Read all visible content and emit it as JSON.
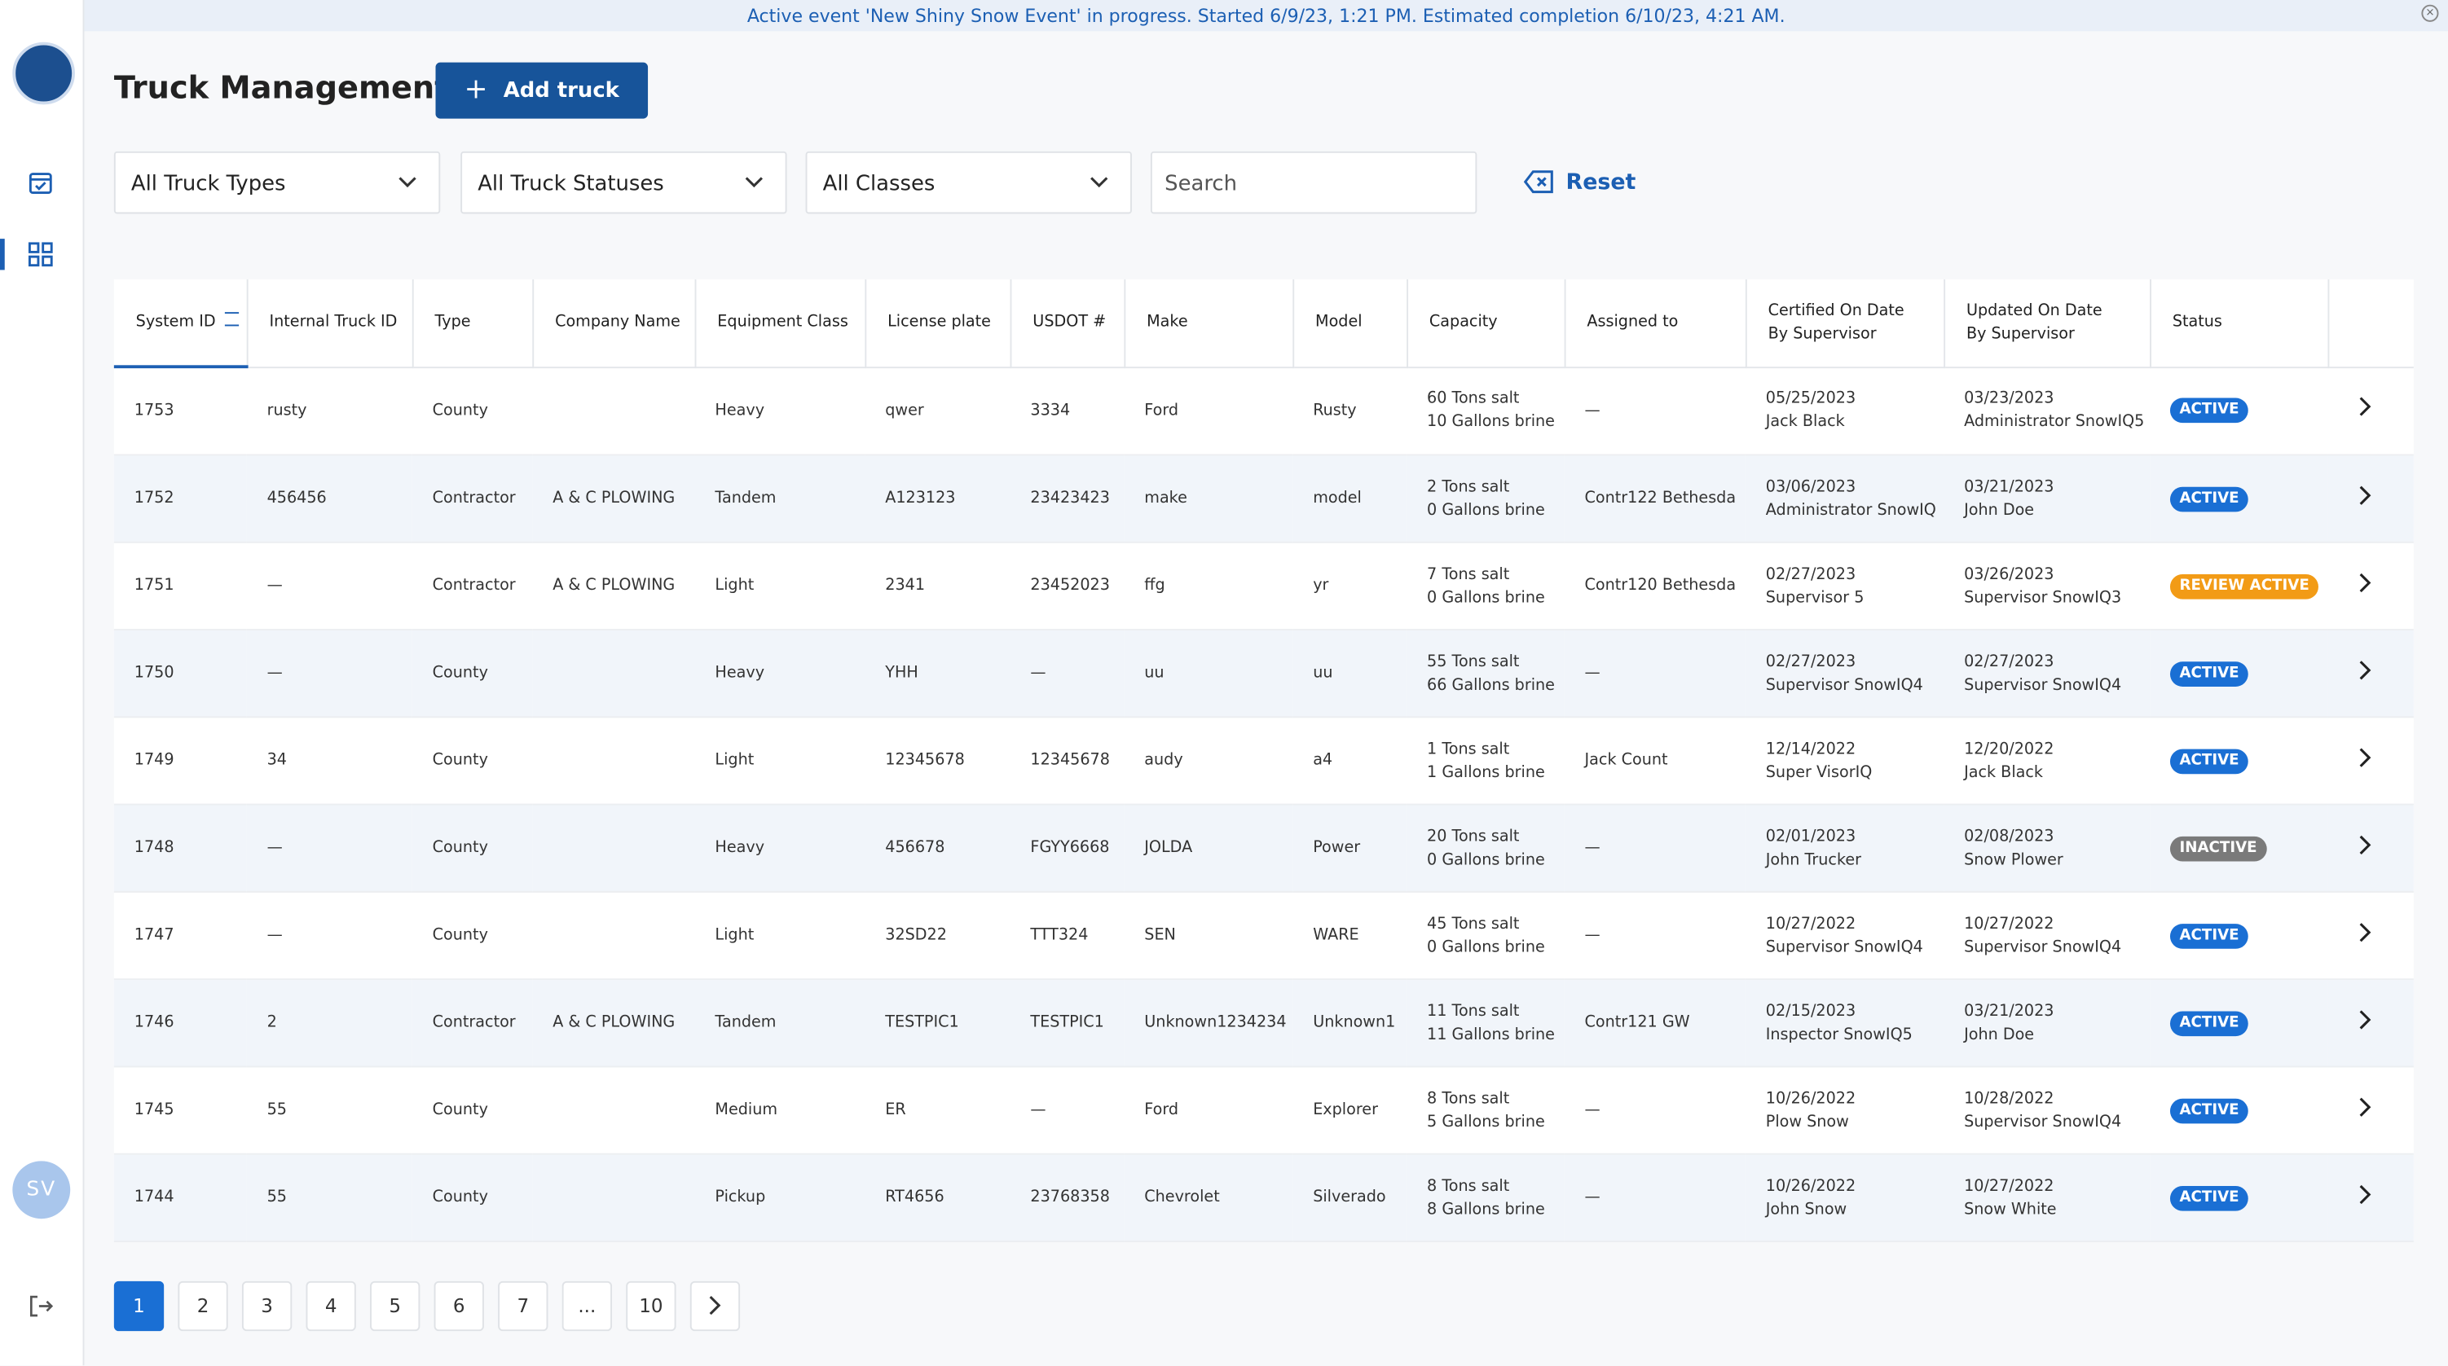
{
  "banner": "Active event 'New Shiny Snow Event' in progress. Started 6/9/23, 1:21 PM. Estimated completion 6/10/23, 4:21 AM.",
  "sidebar": {
    "avatar": "SV"
  },
  "header": {
    "title": "Truck Management",
    "add_button": "Add truck"
  },
  "filters": {
    "truck_types": "All Truck Types",
    "truck_statuses": "All Truck Statuses",
    "classes": "All Classes",
    "search_placeholder": "Search",
    "reset": "Reset"
  },
  "table": {
    "columns": [
      "System ID",
      "Internal Truck ID",
      "Type",
      "Company Name",
      "Equipment Class",
      "License plate",
      "USDOT #",
      "Make",
      "Model",
      "Capacity",
      "Assigned to",
      "Certified On Date By Supervisor",
      "Updated On Date By Supervisor",
      "Status"
    ],
    "rows": [
      {
        "system_id": "1753",
        "internal_id": "rusty",
        "type": "County",
        "equipment_class": "Heavy",
        "license_plate": "qwer",
        "usdot": "3334",
        "make": "Ford",
        "model": "Rusty",
        "salt": "60 Tons salt",
        "brine": "10 Gallons brine",
        "assigned_to": "—",
        "certified_date": "05/25/2023",
        "certified_by": "Jack Black",
        "updated_date": "03/23/2023",
        "updated_by": "Administrator SnowIQ5",
        "status": "ACTIVE"
      },
      {
        "system_id": "1752",
        "internal_id": "456456",
        "type": "Contractor",
        "company": "A & C PLOWING",
        "equipment_class": "Tandem",
        "license_plate": "A123123",
        "usdot": "23423423",
        "make": "make",
        "model": "model",
        "salt": "2 Tons salt",
        "brine": "0 Gallons brine",
        "assigned_to": "Contr122 Bethesda",
        "certified_date": "03/06/2023",
        "certified_by": "Administrator SnowIQ",
        "updated_date": "03/21/2023",
        "updated_by": "John Doe",
        "status": "ACTIVE"
      },
      {
        "system_id": "1751",
        "internal_id": "—",
        "type": "Contractor",
        "company": "A & C PLOWING",
        "equipment_class": "Light",
        "license_plate": "2341",
        "usdot": "23452023",
        "make": "ffg",
        "model": "yr",
        "salt": "7 Tons salt",
        "brine": "0 Gallons brine",
        "assigned_to": "Contr120 Bethesda",
        "certified_date": "02/27/2023",
        "certified_by": "Supervisor 5",
        "updated_date": "03/26/2023",
        "updated_by": "Supervisor SnowIQ3",
        "status": "REVIEW ACTIVE"
      },
      {
        "system_id": "1750",
        "internal_id": "—",
        "type": "County",
        "equipment_class": "Heavy",
        "license_plate": "YHH",
        "usdot": "—",
        "make": "uu",
        "model": "uu",
        "salt": "55 Tons salt",
        "brine": "66 Gallons brine",
        "assigned_to": "—",
        "certified_date": "02/27/2023",
        "certified_by": "Supervisor SnowIQ4",
        "updated_date": "02/27/2023",
        "updated_by": "Supervisor SnowIQ4",
        "status": "ACTIVE"
      },
      {
        "system_id": "1749",
        "internal_id": "34",
        "type": "County",
        "equipment_class": "Light",
        "license_plate": "12345678",
        "usdot": "12345678",
        "make": "audy",
        "model": "a4",
        "salt": "1 Tons salt",
        "brine": "1 Gallons brine",
        "assigned_to": "Jack Count",
        "certified_date": "12/14/2022",
        "certified_by": "Super VisorIQ",
        "updated_date": "12/20/2022",
        "updated_by": "Jack Black",
        "status": "ACTIVE"
      },
      {
        "system_id": "1748",
        "internal_id": "—",
        "type": "County",
        "equipment_class": "Heavy",
        "license_plate": "456678",
        "usdot": "FGYY6668",
        "make": "JOLDA",
        "model": "Power",
        "salt": "20 Tons salt",
        "brine": "0 Gallons brine",
        "assigned_to": "—",
        "certified_date": "02/01/2023",
        "certified_by": "John Trucker",
        "updated_date": "02/08/2023",
        "updated_by": "Snow Plower",
        "status": "INACTIVE"
      },
      {
        "system_id": "1747",
        "internal_id": "—",
        "type": "County",
        "equipment_class": "Light",
        "license_plate": "32SD22",
        "usdot": "TTT324",
        "make": "SEN",
        "model": "WARE",
        "salt": "45 Tons salt",
        "brine": "0 Gallons brine",
        "assigned_to": "—",
        "certified_date": "10/27/2022",
        "certified_by": "Supervisor SnowIQ4",
        "updated_date": "10/27/2022",
        "updated_by": "Supervisor SnowIQ4",
        "status": "ACTIVE"
      },
      {
        "system_id": "1746",
        "internal_id": "2",
        "type": "Contractor",
        "company": "A & C PLOWING",
        "equipment_class": "Tandem",
        "license_plate": "TESTPIC1",
        "usdot": "TESTPIC1",
        "make": "Unknown1234234",
        "model": "Unknown1",
        "salt": "11 Tons salt",
        "brine": "11 Gallons brine",
        "assigned_to": "Contr121 GW",
        "certified_date": "02/15/2023",
        "certified_by": "Inspector SnowIQ5",
        "updated_date": "03/21/2023",
        "updated_by": "John Doe",
        "status": "ACTIVE"
      },
      {
        "system_id": "1745",
        "internal_id": "55",
        "type": "County",
        "equipment_class": "Medium",
        "license_plate": "ER",
        "usdot": "—",
        "make": "Ford",
        "model": "Explorer",
        "salt": "8 Tons salt",
        "brine": "5 Gallons brine",
        "assigned_to": "—",
        "certified_date": "10/26/2022",
        "certified_by": "Plow Snow",
        "updated_date": "10/28/2022",
        "updated_by": "Supervisor SnowIQ4",
        "status": "ACTIVE"
      },
      {
        "system_id": "1744",
        "internal_id": "55",
        "type": "County",
        "equipment_class": "Pickup",
        "license_plate": "RT4656",
        "usdot": "23768358",
        "make": "Chevrolet",
        "model": "Silverado",
        "salt": "8 Tons salt",
        "brine": "8 Gallons brine",
        "assigned_to": "—",
        "certified_date": "10/26/2022",
        "certified_by": "John Snow",
        "updated_date": "10/27/2022",
        "updated_by": "Snow White",
        "status": "ACTIVE"
      }
    ]
  },
  "pagination": {
    "pages": [
      "1",
      "2",
      "3",
      "4",
      "5",
      "6",
      "7",
      "...",
      "10"
    ]
  }
}
